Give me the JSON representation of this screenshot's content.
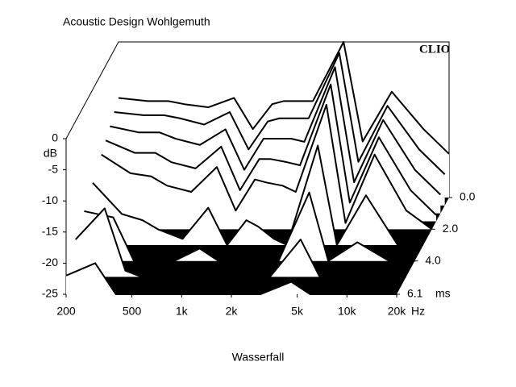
{
  "chart_data": {
    "type": "waterfall",
    "title": "Acoustic Design Wohlgemuth",
    "brand": "CLIO",
    "xlabel": "Wasserfall",
    "x_unit": "Hz",
    "y_unit": "dB",
    "z_unit": "ms",
    "xscale": "log",
    "xlim": [
      200,
      20000
    ],
    "xticks": [
      200,
      500,
      {
        "value": 1000,
        "label": "1k"
      },
      {
        "value": 2000,
        "label": "2k"
      },
      {
        "value": 5000,
        "label": "5k"
      },
      {
        "value": 10000,
        "label": "10k"
      },
      {
        "value": 20000,
        "label": "20k"
      }
    ],
    "ylim": [
      -25,
      0
    ],
    "yticks": [
      0,
      -5,
      -10,
      -15,
      -20,
      -25
    ],
    "zlim": [
      0,
      6.1
    ],
    "zticks": [
      {
        "value": 0,
        "label": "0.0"
      },
      {
        "value": 2,
        "label": "2.0"
      },
      {
        "value": 4,
        "label": "4.0"
      },
      6.1
    ],
    "frequencies": [
      200,
      300,
      400,
      500,
      700,
      1000,
      1300,
      1700,
      2000,
      2500,
      3000,
      4600,
      6000,
      9000,
      14000,
      20000
    ],
    "slices": [
      {
        "t": 0,
        "values": [
          -9,
          -9.5,
          -9.5,
          -10,
          -10.5,
          -9,
          -14,
          -10,
          -9.5,
          -9.5,
          -9.5,
          0,
          -16,
          -8,
          -14,
          -18
        ]
      },
      {
        "t": 0.5,
        "values": [
          -10,
          -10.5,
          -10.5,
          -11,
          -12,
          -10,
          -16,
          -11.5,
          -11,
          -11,
          -11,
          -0.5,
          -18,
          -9,
          -16,
          -20
        ]
      },
      {
        "t": 1,
        "values": [
          -11,
          -12,
          -12,
          -13,
          -14,
          -11.5,
          -18,
          -13,
          -13,
          -13,
          -13.5,
          -1.5,
          -20,
          -10,
          -18,
          -22
        ]
      },
      {
        "t": 1.5,
        "values": [
          -12,
          -14,
          -14,
          -15.5,
          -16.5,
          -13,
          -20,
          -15,
          -15,
          -15.5,
          -16,
          -3,
          -22,
          -11.5,
          -20,
          -24
        ]
      },
      {
        "t": 2,
        "values": [
          -13,
          -16,
          -16.5,
          -18,
          -19,
          -15,
          -22,
          -17,
          -17.5,
          -18,
          -19,
          -5,
          -24,
          -13,
          -22,
          -25
        ]
      },
      {
        "t": 3,
        "values": [
          -15,
          -20,
          -21,
          -22.5,
          -24,
          -19,
          -25,
          -21,
          -22,
          -24,
          -25,
          -9,
          -25,
          -17,
          -25,
          -25
        ]
      },
      {
        "t": 4,
        "values": [
          -17,
          -18,
          -25,
          -25,
          -25,
          -23,
          -25,
          -25,
          -25,
          -25,
          -25,
          -14,
          -25,
          -22,
          -25,
          -25
        ]
      },
      {
        "t": 5,
        "values": [
          -19,
          -14,
          -24,
          -25,
          -25,
          -25,
          -25,
          -25,
          -25,
          -25,
          -25,
          -19,
          -25,
          -25,
          -25,
          -25
        ]
      },
      {
        "t": 6.1,
        "values": [
          -22,
          -20,
          -25,
          -25,
          -25,
          -25,
          -25,
          -25,
          -25,
          -25,
          -25,
          -23,
          -25,
          -25,
          -25,
          -25
        ]
      }
    ]
  }
}
